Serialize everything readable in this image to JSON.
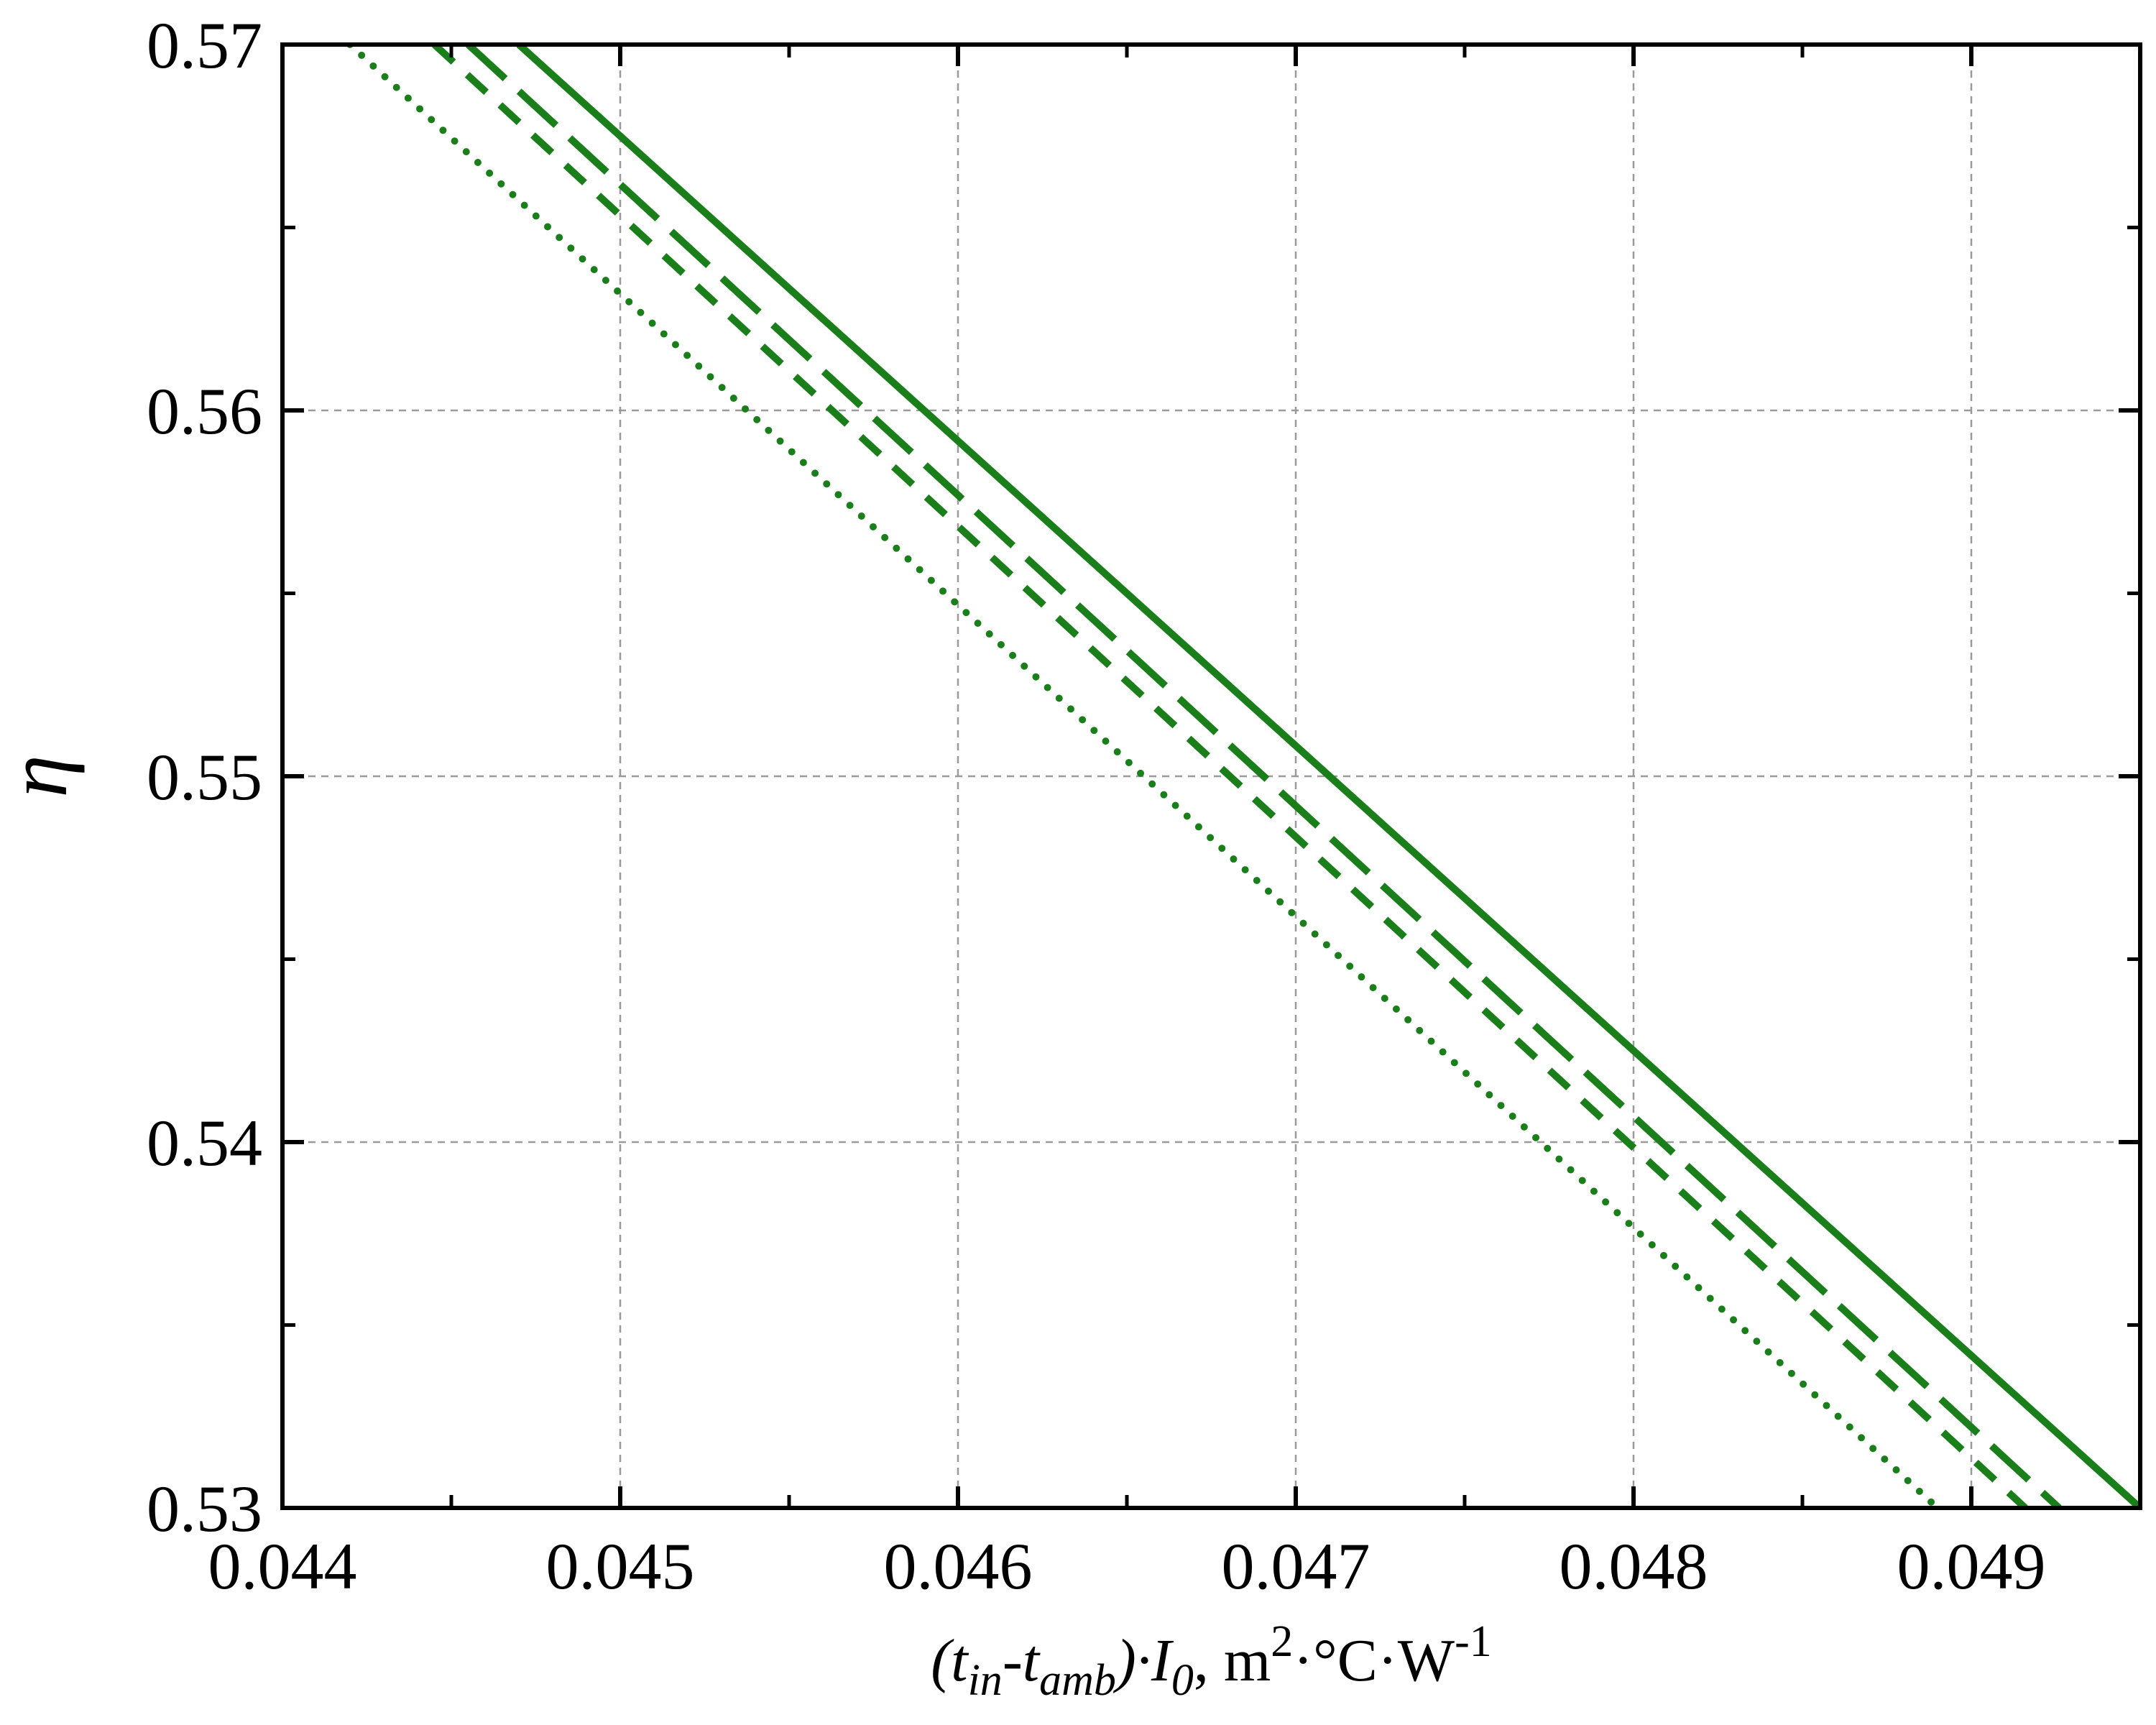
{
  "chart_data": {
    "type": "line",
    "title": "",
    "xlabel": {
      "open": "(t",
      "sub_in": "in",
      "minus": "-t",
      "sub_amb": "amb",
      "close": ")·I",
      "sub_0": "0",
      "units_pre": ",  m",
      "sup_2": "2",
      "units_mid": "·°C·W",
      "sup_m1": "-1"
    },
    "ylabel": "η",
    "xlim": [
      0.044,
      0.0495
    ],
    "ylim": [
      0.53,
      0.57
    ],
    "x_ticks": [
      "0.044",
      "0.045",
      "0.046",
      "0.047",
      "0.048",
      "0.049"
    ],
    "y_ticks": [
      "0.53",
      "0.54",
      "0.55",
      "0.56",
      "0.57"
    ],
    "grid": true,
    "line_color": "#1a7f1a",
    "series": [
      {
        "style": "solid",
        "x": [
          0.0447,
          0.0495
        ],
        "y": [
          0.57,
          0.53
        ]
      },
      {
        "style": "long-dash",
        "x": [
          0.04455,
          0.04926
        ],
        "y": [
          0.57,
          0.53
        ]
      },
      {
        "style": "short-dash",
        "x": [
          0.04445,
          0.04916
        ],
        "y": [
          0.57,
          0.53
        ]
      },
      {
        "style": "dotted",
        "x": [
          0.0442,
          0.0489
        ],
        "y": [
          0.57,
          0.53
        ]
      }
    ]
  }
}
